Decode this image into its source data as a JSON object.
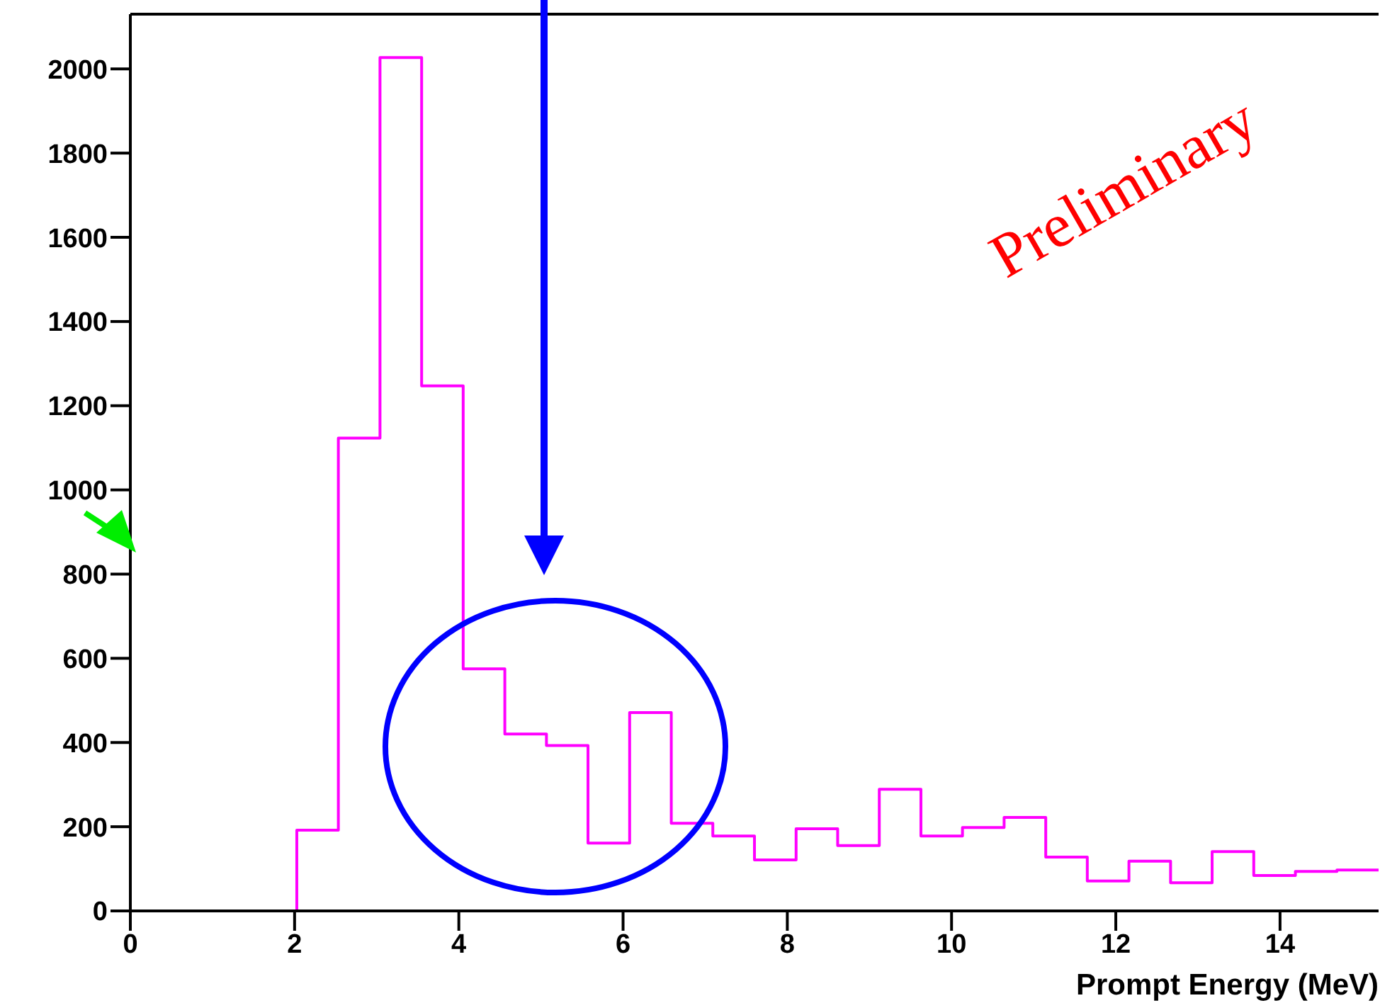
{
  "chart_data": {
    "type": "histogram",
    "xlabel": "Prompt Energy (MeV)",
    "bins": [
      2.027,
      2.533,
      3.04,
      3.547,
      4.053,
      4.56,
      5.067,
      5.573,
      6.08,
      6.587,
      7.093,
      7.6,
      8.107,
      8.613,
      9.12,
      9.627,
      10.133,
      10.64,
      11.147,
      11.653,
      12.16,
      12.667,
      13.173,
      13.68,
      14.187,
      14.693,
      15.2
    ],
    "values": [
      192,
      1123,
      2027,
      1247,
      575,
      420,
      393,
      161,
      471,
      208,
      178,
      121,
      195,
      155,
      289,
      178,
      198,
      222,
      128,
      71,
      118,
      67,
      141,
      84,
      94,
      97
    ],
    "color": "#ff00ff",
    "xlim": [
      0,
      15.2
    ],
    "xticks": [
      0,
      2,
      4,
      6,
      8,
      10,
      12,
      14
    ],
    "ylim": [
      0,
      2130
    ],
    "yticks": [
      0,
      200,
      400,
      600,
      800,
      1000,
      1200,
      1400,
      1600,
      1800,
      2000
    ],
    "annotations": [
      "Preliminary"
    ]
  }
}
